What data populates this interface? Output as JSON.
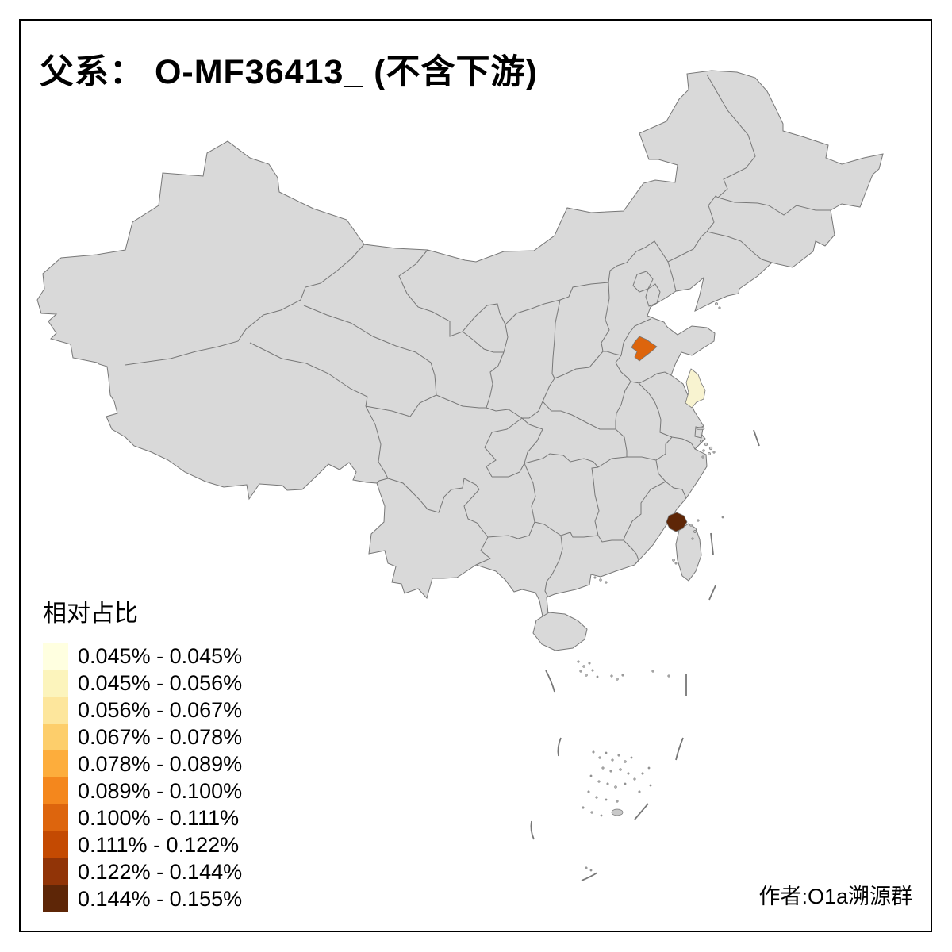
{
  "title": "父系： O-MF36413_ (不含下游)",
  "legend": {
    "title": "相对占比",
    "classes": [
      {
        "range": "0.045% - 0.045%",
        "color": "#FFFFE0"
      },
      {
        "range": "0.045% - 0.056%",
        "color": "#FCF4BC"
      },
      {
        "range": "0.056% - 0.067%",
        "color": "#FDE69C"
      },
      {
        "range": "0.067% - 0.078%",
        "color": "#FDCE6B"
      },
      {
        "range": "0.078% - 0.089%",
        "color": "#FDAD3C"
      },
      {
        "range": "0.089% - 0.100%",
        "color": "#F4871D"
      },
      {
        "range": "0.100% - 0.111%",
        "color": "#DD650D"
      },
      {
        "range": "0.111% - 0.122%",
        "color": "#C44A02"
      },
      {
        "range": "0.122% - 0.144%",
        "color": "#913407"
      },
      {
        "range": "0.144% - 0.155%",
        "color": "#5E2607"
      }
    ]
  },
  "attribution": "作者:O1a溯源群",
  "map": {
    "background": "#FFFFFF",
    "land_fill": "#D9D9D9",
    "border_color": "#777777",
    "frame_color": "#000000",
    "regions": [
      {
        "id": "region-north-orange",
        "range": "0.100% - 0.111%",
        "color": "#DD650D"
      },
      {
        "id": "region-east-cream",
        "range": "0.045% - 0.045%",
        "color": "#F8F3D0"
      },
      {
        "id": "region-southeast-dark",
        "range": "0.144% - 0.155%",
        "color": "#5E2607"
      }
    ]
  }
}
